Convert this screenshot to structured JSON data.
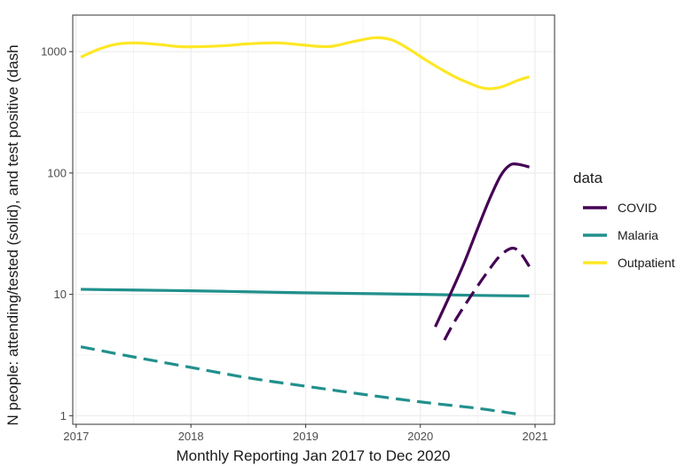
{
  "chart_data": {
    "type": "line",
    "xlabel": "Monthly Reporting Jan 2017 to Dec 2020",
    "ylabel": "N people: attending/tested (solid), and test positive (dash",
    "y_scale": "log10",
    "xlim": [
      2016.97,
      2021.17
    ],
    "ylim": [
      0.85,
      2000
    ],
    "x_ticks": [
      2017,
      2018,
      2019,
      2020,
      2021
    ],
    "x_tick_labels": [
      "2017",
      "2018",
      "2019",
      "2020",
      "2021"
    ],
    "y_ticks": [
      1,
      10,
      100,
      1000
    ],
    "y_tick_labels": [
      "1",
      "10",
      "100",
      "1000"
    ],
    "grid": true,
    "legend": {
      "title": "data",
      "position": "right",
      "entries": [
        {
          "label": "COVID",
          "color": "#440154"
        },
        {
          "label": "Malaria",
          "color": "#21908C"
        },
        {
          "label": "Outpatient",
          "color": "#FDE725"
        }
      ]
    },
    "series": [
      {
        "name": "Outpatient",
        "measure": "attending/tested",
        "style": "solid",
        "color": "#FDE725",
        "x": [
          2017.04,
          2017.2,
          2017.35,
          2017.5,
          2017.7,
          2017.9,
          2018.1,
          2018.3,
          2018.5,
          2018.75,
          2018.95,
          2019.2,
          2019.4,
          2019.6,
          2019.75,
          2019.9,
          2020.05,
          2020.2,
          2020.35,
          2020.55,
          2020.7,
          2020.85,
          2020.95
        ],
        "y": [
          900,
          1050,
          1150,
          1180,
          1150,
          1100,
          1100,
          1120,
          1160,
          1180,
          1140,
          1100,
          1200,
          1300,
          1250,
          1050,
          850,
          700,
          590,
          500,
          510,
          580,
          620
        ]
      },
      {
        "name": "Malaria",
        "measure": "attending/tested",
        "style": "solid",
        "color": "#21908C",
        "x": [
          2017.04,
          2017.5,
          2018.0,
          2018.5,
          2019.0,
          2019.5,
          2020.0,
          2020.5,
          2020.95
        ],
        "y": [
          11,
          10.85,
          10.7,
          10.5,
          10.3,
          10.15,
          10.0,
          9.8,
          9.7
        ]
      },
      {
        "name": "Malaria",
        "measure": "test positive",
        "style": "dashed",
        "color": "#21908C",
        "x": [
          2017.04,
          2017.5,
          2018.0,
          2018.5,
          2019.0,
          2019.5,
          2020.0,
          2020.5,
          2020.88
        ],
        "y": [
          3.7,
          3.05,
          2.5,
          2.05,
          1.75,
          1.5,
          1.3,
          1.15,
          1.02
        ]
      },
      {
        "name": "COVID",
        "measure": "attending/tested",
        "style": "solid",
        "color": "#440154",
        "x": [
          2020.13,
          2020.25,
          2020.38,
          2020.5,
          2020.6,
          2020.7,
          2020.78,
          2020.85,
          2020.95
        ],
        "y": [
          5.4,
          9.5,
          18,
          35,
          60,
          95,
          116,
          118,
          112
        ]
      },
      {
        "name": "COVID",
        "measure": "test positive",
        "style": "dashed",
        "color": "#440154",
        "x": [
          2020.21,
          2020.3,
          2020.45,
          2020.6,
          2020.7,
          2020.8,
          2020.87,
          2020.95
        ],
        "y": [
          4.2,
          6,
          10,
          16,
          21,
          24,
          22,
          17
        ]
      }
    ]
  }
}
